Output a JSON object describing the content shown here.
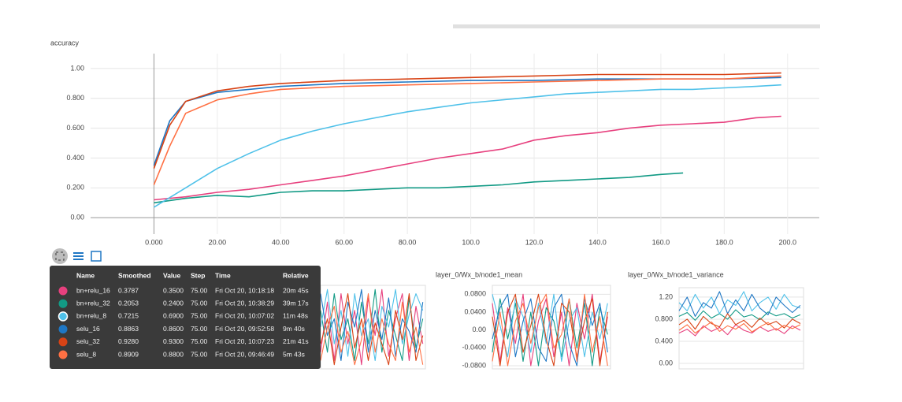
{
  "chart_data": [
    {
      "type": "line",
      "title": "accuracy",
      "xlim": [
        -20,
        210
      ],
      "xticks": [
        {
          "value": 0,
          "label": "0.000"
        },
        {
          "value": 20,
          "label": "20.00"
        },
        {
          "value": 40,
          "label": "40.00"
        },
        {
          "value": 60,
          "label": "60.00"
        },
        {
          "value": 80,
          "label": "80.00"
        },
        {
          "value": 100,
          "label": "100.0"
        },
        {
          "value": 120,
          "label": "120.0"
        },
        {
          "value": 140,
          "label": "140.0"
        },
        {
          "value": 160,
          "label": "160.0"
        },
        {
          "value": 180,
          "label": "180.0"
        },
        {
          "value": 200,
          "label": "200.0"
        }
      ],
      "ylim": [
        -0.11,
        1.1
      ],
      "yticks": [
        {
          "value": 0,
          "label": "0.00"
        },
        {
          "value": 0.2,
          "label": "0.200"
        },
        {
          "value": 0.4,
          "label": "0.400"
        },
        {
          "value": 0.6,
          "label": "0.600"
        },
        {
          "value": 0.8,
          "label": "0.800"
        },
        {
          "value": 1,
          "label": "1.00"
        }
      ],
      "grid": true,
      "series": [
        {
          "name": "bn+relu_16",
          "color": "#e7407e",
          "x": [
            0,
            10,
            20,
            30,
            40,
            50,
            60,
            70,
            80,
            90,
            100,
            110,
            120,
            130,
            140,
            150,
            160,
            170,
            180,
            190,
            198
          ],
          "values": [
            0.12,
            0.14,
            0.17,
            0.19,
            0.22,
            0.25,
            0.28,
            0.32,
            0.36,
            0.4,
            0.43,
            0.46,
            0.52,
            0.55,
            0.57,
            0.6,
            0.62,
            0.63,
            0.64,
            0.67,
            0.68
          ]
        },
        {
          "name": "bn+relu_32",
          "color": "#129a85",
          "x": [
            0,
            10,
            20,
            30,
            40,
            50,
            60,
            70,
            80,
            90,
            100,
            110,
            120,
            130,
            140,
            150,
            160,
            167
          ],
          "values": [
            0.1,
            0.13,
            0.15,
            0.14,
            0.17,
            0.18,
            0.18,
            0.19,
            0.2,
            0.2,
            0.21,
            0.22,
            0.24,
            0.25,
            0.26,
            0.27,
            0.29,
            0.3
          ]
        },
        {
          "name": "bn+relu_8",
          "color": "#4fc1e9",
          "x": [
            0,
            10,
            20,
            30,
            40,
            50,
            60,
            70,
            80,
            90,
            100,
            110,
            120,
            130,
            140,
            150,
            160,
            170,
            180,
            190,
            198
          ],
          "values": [
            0.07,
            0.2,
            0.33,
            0.43,
            0.52,
            0.58,
            0.63,
            0.67,
            0.71,
            0.74,
            0.77,
            0.79,
            0.81,
            0.83,
            0.84,
            0.85,
            0.86,
            0.86,
            0.87,
            0.88,
            0.89
          ]
        },
        {
          "name": "selu_16",
          "color": "#1f77c4",
          "x": [
            0,
            5,
            10,
            20,
            30,
            40,
            50,
            60,
            80,
            100,
            120,
            140,
            160,
            180,
            198
          ],
          "values": [
            0.35,
            0.65,
            0.78,
            0.84,
            0.86,
            0.88,
            0.89,
            0.9,
            0.91,
            0.92,
            0.92,
            0.93,
            0.93,
            0.93,
            0.94
          ]
        },
        {
          "name": "selu_32",
          "color": "#d84315",
          "x": [
            0,
            5,
            10,
            20,
            30,
            40,
            60,
            80,
            100,
            120,
            140,
            160,
            180,
            198
          ],
          "values": [
            0.33,
            0.62,
            0.78,
            0.85,
            0.88,
            0.9,
            0.92,
            0.93,
            0.94,
            0.95,
            0.96,
            0.96,
            0.96,
            0.97
          ]
        },
        {
          "name": "selu_8",
          "color": "#ff7043",
          "x": [
            0,
            5,
            10,
            20,
            30,
            40,
            60,
            80,
            100,
            120,
            140,
            160,
            180,
            198
          ],
          "values": [
            0.22,
            0.48,
            0.7,
            0.79,
            0.83,
            0.86,
            0.88,
            0.89,
            0.9,
            0.91,
            0.92,
            0.93,
            0.93,
            0.95
          ]
        }
      ]
    },
    {
      "type": "line",
      "xlim": [
        0,
        200
      ],
      "ylim": [
        0,
        1
      ],
      "x": [
        0,
        13,
        26,
        39,
        52,
        65,
        78,
        91,
        104,
        117,
        130,
        143,
        156,
        169,
        182,
        195
      ],
      "series": [
        {
          "color": "#e7407e",
          "values": [
            0.2,
            0.8,
            0.1,
            0.9,
            0.3,
            0.7,
            0.05,
            0.85,
            0.4,
            0.95,
            0.15,
            0.6,
            0.9,
            0.1,
            0.75,
            0.3
          ]
        },
        {
          "color": "#129a85",
          "values": [
            0.7,
            0.2,
            0.9,
            0.35,
            0.6,
            0.1,
            0.8,
            0.3,
            0.95,
            0.2,
            0.7,
            0.4,
            0.1,
            0.85,
            0.25,
            0.6
          ]
        },
        {
          "color": "#4fc1e9",
          "values": [
            0.5,
            0.95,
            0.3,
            0.7,
            0.15,
            0.9,
            0.4,
            0.6,
            0.1,
            0.75,
            0.5,
            0.95,
            0.3,
            0.65,
            0.9,
            0.7
          ]
        },
        {
          "color": "#1f77c4",
          "values": [
            0.9,
            0.4,
            0.6,
            0.1,
            0.8,
            0.5,
            0.95,
            0.2,
            0.7,
            0.35,
            0.85,
            0.15,
            0.6,
            0.45,
            0.2,
            0.8
          ]
        },
        {
          "color": "#d84315",
          "values": [
            0.3,
            0.6,
            0.05,
            0.5,
            0.9,
            0.25,
            0.6,
            0.1,
            0.55,
            0.3,
            0.05,
            0.7,
            0.35,
            0.9,
            0.1,
            0.4
          ]
        },
        {
          "color": "#ff7043",
          "values": [
            0.1,
            0.5,
            0.75,
            0.2,
            0.45,
            0.05,
            0.35,
            0.9,
            0.2,
            0.6,
            0.3,
            0.1,
            0.8,
            0.2,
            0.5,
            0.05
          ]
        }
      ]
    },
    {
      "type": "line",
      "title": "layer_0/Wx_b/node1_mean",
      "xlim": [
        0,
        200
      ],
      "ylim": [
        -0.087,
        0.1
      ],
      "yticks": [
        {
          "value": 0.08,
          "label": "0.0800"
        },
        {
          "value": 0.04,
          "label": "0.0400"
        },
        {
          "value": 0,
          "label": "0.00"
        },
        {
          "value": -0.04,
          "label": "-0.0400"
        },
        {
          "value": -0.08,
          "label": "-0.0800"
        }
      ],
      "grid": true,
      "x": [
        0,
        13,
        26,
        39,
        52,
        65,
        78,
        91,
        104,
        117,
        130,
        143,
        156,
        169,
        182,
        195
      ],
      "series": [
        {
          "color": "#e7407e",
          "values": [
            0.06,
            -0.07,
            0.05,
            -0.03,
            0.08,
            -0.08,
            0.02,
            0.07,
            -0.06,
            0.04,
            -0.08,
            0.06,
            -0.02,
            0.08,
            -0.07,
            0.03
          ]
        },
        {
          "color": "#129a85",
          "values": [
            -0.05,
            0.07,
            -0.02,
            0.06,
            -0.07,
            0.04,
            -0.08,
            0.05,
            0.02,
            -0.06,
            0.07,
            -0.04,
            0.06,
            -0.08,
            0.05,
            -0.01
          ]
        },
        {
          "color": "#4fc1e9",
          "values": [
            0.08,
            0.01,
            -0.06,
            0.07,
            0.03,
            -0.05,
            0.06,
            -0.03,
            0.08,
            -0.07,
            0.02,
            0.05,
            -0.06,
            0.04,
            -0.02,
            0.06
          ]
        },
        {
          "color": "#1f77c4",
          "values": [
            -0.02,
            0.05,
            0.08,
            -0.06,
            0.02,
            0.07,
            -0.04,
            -0.07,
            0.05,
            0.08,
            -0.03,
            -0.08,
            0.07,
            0.01,
            0.06,
            -0.05
          ]
        },
        {
          "color": "#d84315",
          "values": [
            0.03,
            -0.08,
            0.04,
            0.08,
            -0.05,
            0.01,
            0.08,
            -0.02,
            -0.08,
            0.06,
            0.04,
            -0.06,
            0.02,
            0.07,
            -0.08,
            0.04
          ]
        },
        {
          "color": "#ff7043",
          "values": [
            -0.07,
            0.04,
            -0.08,
            0.02,
            0.06,
            -0.03,
            0.05,
            0.08,
            -0.04,
            -0.01,
            0.07,
            -0.07,
            0.08,
            -0.05,
            0.03,
            -0.08
          ]
        }
      ]
    },
    {
      "type": "line",
      "title": "layer_0/Wx_b/node1_variance",
      "xlim": [
        0,
        200
      ],
      "ylim": [
        -0.1,
        1.37
      ],
      "yticks": [
        {
          "value": 1.2,
          "label": "1.20"
        },
        {
          "value": 0.8,
          "label": "0.800"
        },
        {
          "value": 0.4,
          "label": "0.400"
        },
        {
          "value": 0,
          "label": "0.00"
        }
      ],
      "grid": true,
      "x": [
        0,
        13,
        26,
        39,
        52,
        65,
        78,
        91,
        104,
        117,
        130,
        143,
        156,
        169,
        182,
        195
      ],
      "series": [
        {
          "color": "#e7407e",
          "values": [
            0.55,
            0.62,
            0.5,
            0.68,
            0.58,
            0.65,
            0.52,
            0.7,
            0.6,
            0.55,
            0.66,
            0.58,
            0.63,
            0.54,
            0.68,
            0.6
          ]
        },
        {
          "color": "#129a85",
          "values": [
            0.85,
            0.92,
            0.78,
            0.95,
            0.82,
            0.9,
            0.8,
            0.97,
            0.84,
            0.88,
            0.79,
            0.93,
            0.86,
            0.9,
            0.82,
            0.88
          ]
        },
        {
          "color": "#4fc1e9",
          "values": [
            1.1,
            0.95,
            1.25,
            1.0,
            1.2,
            0.9,
            1.15,
            1.05,
            1.3,
            0.95,
            1.1,
            1.2,
            0.98,
            1.25,
            1.05,
            1.0
          ]
        },
        {
          "color": "#1f77c4",
          "values": [
            0.95,
            1.2,
            0.85,
            1.1,
            1.0,
            1.3,
            0.9,
            1.15,
            0.95,
            1.25,
            1.0,
            0.88,
            1.2,
            1.05,
            0.92,
            1.05
          ]
        },
        {
          "color": "#d84315",
          "values": [
            0.7,
            0.8,
            0.62,
            0.85,
            0.72,
            0.66,
            0.9,
            0.7,
            0.78,
            0.65,
            0.82,
            0.7,
            0.76,
            0.64,
            0.8,
            0.72
          ]
        },
        {
          "color": "#ff7043",
          "values": [
            0.6,
            0.7,
            0.55,
            0.65,
            0.75,
            0.58,
            0.68,
            0.62,
            0.72,
            0.57,
            0.66,
            0.74,
            0.6,
            0.69,
            0.63,
            0.7
          ]
        }
      ]
    }
  ],
  "tooltip": {
    "columns": [
      "Name",
      "Smoothed",
      "Value",
      "Step",
      "Time",
      "Relative"
    ],
    "rows": [
      {
        "color": "#e7407e",
        "cells": [
          "bn+relu_16",
          "0.3787",
          "0.3500",
          "75.00",
          "Fri Oct 20, 10:18:18",
          "20m 45s"
        ]
      },
      {
        "color": "#129a85",
        "cells": [
          "bn+relu_32",
          "0.2053",
          "0.2400",
          "75.00",
          "Fri Oct 20, 10:38:29",
          "39m 17s"
        ]
      },
      {
        "color": "#4fc1e9",
        "cells": [
          "bn+relu_8",
          "0.7215",
          "0.6900",
          "75.00",
          "Fri Oct 20, 10:07:02",
          "11m 48s"
        ]
      },
      {
        "color": "#1f77c4",
        "cells": [
          "selu_16",
          "0.8863",
          "0.8600",
          "75.00",
          "Fri Oct 20, 09:52:58",
          "9m 40s"
        ]
      },
      {
        "color": "#d84315",
        "cells": [
          "selu_32",
          "0.9280",
          "0.9300",
          "75.00",
          "Fri Oct 20, 10:07:23",
          "21m 41s"
        ]
      },
      {
        "color": "#ff7043",
        "cells": [
          "selu_8",
          "0.8909",
          "0.8800",
          "75.00",
          "Fri Oct 20, 09:46:49",
          "5m 43s"
        ]
      }
    ]
  }
}
